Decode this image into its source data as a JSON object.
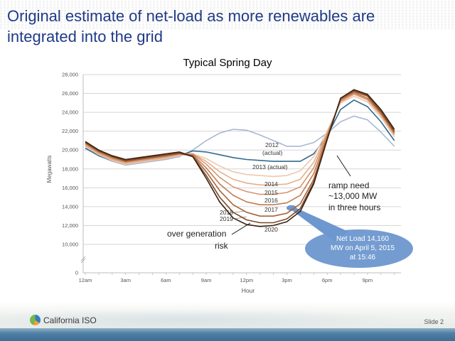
{
  "slide": {
    "title": "Original estimate of net-load as more renewables are integrated into the grid",
    "footer_org": "California ISO",
    "slide_number": "Slide 2",
    "title_color": "#1f3a86"
  },
  "chart_data": {
    "type": "line",
    "title": "Typical Spring Day",
    "xlabel": "Hour",
    "ylabel": "Megawatts",
    "x": [
      0,
      1,
      2,
      3,
      4,
      5,
      6,
      7,
      8,
      9,
      10,
      11,
      12,
      13,
      14,
      15,
      16,
      17,
      18,
      19,
      20,
      21,
      22,
      23
    ],
    "x_tick_labels": [
      "12am",
      "3am",
      "6am",
      "9am",
      "12pm",
      "3pm",
      "6pm",
      "9pm"
    ],
    "x_tick_positions": [
      0,
      3,
      6,
      9,
      12,
      15,
      18,
      21
    ],
    "y_tick_labels": [
      "0",
      "10,000",
      "12,000",
      "14,000",
      "16,000",
      "18,000",
      "20,000",
      "22,000",
      "24,000",
      "26,000",
      "28,000"
    ],
    "ylim": [
      0,
      28000
    ],
    "y_axis_break": [
      0,
      10000
    ],
    "grid": true,
    "series": [
      {
        "name": "2012 (actual)",
        "color": "#a9b8d2",
        "values": [
          20200,
          19400,
          18800,
          18400,
          18600,
          18800,
          19000,
          19300,
          20000,
          21000,
          21800,
          22200,
          22100,
          21600,
          21000,
          20400,
          20400,
          20800,
          21800,
          23000,
          23600,
          23200,
          21900,
          20400
        ]
      },
      {
        "name": "2013 (actual)",
        "color": "#2f6b8f",
        "values": [
          20200,
          19400,
          18900,
          18600,
          18800,
          18900,
          19100,
          19400,
          19900,
          19800,
          19500,
          19200,
          19000,
          18900,
          18800,
          18800,
          18800,
          19600,
          21500,
          24300,
          25300,
          24600,
          23000,
          21000
        ]
      },
      {
        "name": "2014",
        "color": "#ecc9ad",
        "values": [
          20400,
          19500,
          18900,
          18500,
          18700,
          18900,
          19100,
          19400,
          19600,
          19100,
          18300,
          17700,
          17400,
          17300,
          17200,
          17300,
          17800,
          19300,
          22000,
          25000,
          25700,
          25100,
          23500,
          21400
        ]
      },
      {
        "name": "2015",
        "color": "#e3b08d",
        "values": [
          20500,
          19600,
          19000,
          18600,
          18800,
          19000,
          19200,
          19500,
          19600,
          18800,
          17700,
          16900,
          16500,
          16300,
          16300,
          16400,
          16900,
          18700,
          21800,
          25100,
          25900,
          25300,
          23700,
          21600
        ]
      },
      {
        "name": "2016",
        "color": "#d69670",
        "values": [
          20600,
          19700,
          19100,
          18700,
          18900,
          19100,
          19300,
          19600,
          19600,
          18500,
          17100,
          16100,
          15600,
          15300,
          15300,
          15500,
          16100,
          18100,
          21700,
          25200,
          26000,
          25400,
          23800,
          21700
        ]
      },
      {
        "name": "2017",
        "color": "#c27c52",
        "values": [
          20700,
          19800,
          19200,
          18800,
          19000,
          19200,
          19400,
          19600,
          19500,
          18100,
          16400,
          15200,
          14500,
          14200,
          14200,
          14400,
          15200,
          17500,
          21500,
          25300,
          26100,
          25500,
          23900,
          21800
        ]
      },
      {
        "name": "2018",
        "color": "#a8643b",
        "values": [
          20800,
          19900,
          19300,
          18800,
          19000,
          19200,
          19400,
          19600,
          19400,
          17700,
          15700,
          14200,
          13400,
          13000,
          13000,
          13300,
          14300,
          16900,
          21300,
          25400,
          26200,
          25700,
          24000,
          21900
        ]
      },
      {
        "name": "2019",
        "color": "#7a4a28",
        "values": [
          20800,
          19900,
          19300,
          18900,
          19100,
          19300,
          19500,
          19700,
          19300,
          17300,
          15000,
          13400,
          12600,
          12300,
          12300,
          12700,
          13800,
          16600,
          21200,
          25500,
          26300,
          25800,
          24100,
          22000
        ]
      },
      {
        "name": "2020",
        "color": "#3b2312",
        "values": [
          20900,
          20000,
          19400,
          19000,
          19200,
          19400,
          19600,
          19800,
          19300,
          17000,
          14500,
          12800,
          12100,
          11900,
          12000,
          12400,
          13500,
          16400,
          21100,
          25500,
          26400,
          25900,
          24300,
          22200
        ]
      }
    ],
    "annotations": [
      {
        "id": "label_2012",
        "text": "2012",
        "subtext": "(actual)"
      },
      {
        "id": "label_2013",
        "text": "2013 (actual)"
      },
      {
        "id": "label_2014",
        "text": "2014"
      },
      {
        "id": "label_2015",
        "text": "2015"
      },
      {
        "id": "label_2016",
        "text": "2016"
      },
      {
        "id": "label_2017",
        "text": "2017"
      },
      {
        "id": "label_2018",
        "text": "2018"
      },
      {
        "id": "label_2019",
        "text": "2019"
      },
      {
        "id": "label_2020",
        "text": "2020"
      },
      {
        "id": "over_generation",
        "line1": "over generation",
        "line2": "risk"
      },
      {
        "id": "ramp_need",
        "line1": "ramp need",
        "line2": "~13,000 MW",
        "line3": "in three hours"
      }
    ],
    "callout": {
      "line1": "Net Load 14,160",
      "line2": "MW on April 5, 2015",
      "line3": "at 15:46",
      "point": {
        "hour": 15.77,
        "value": 14160
      },
      "color": "#6d97cf"
    }
  }
}
